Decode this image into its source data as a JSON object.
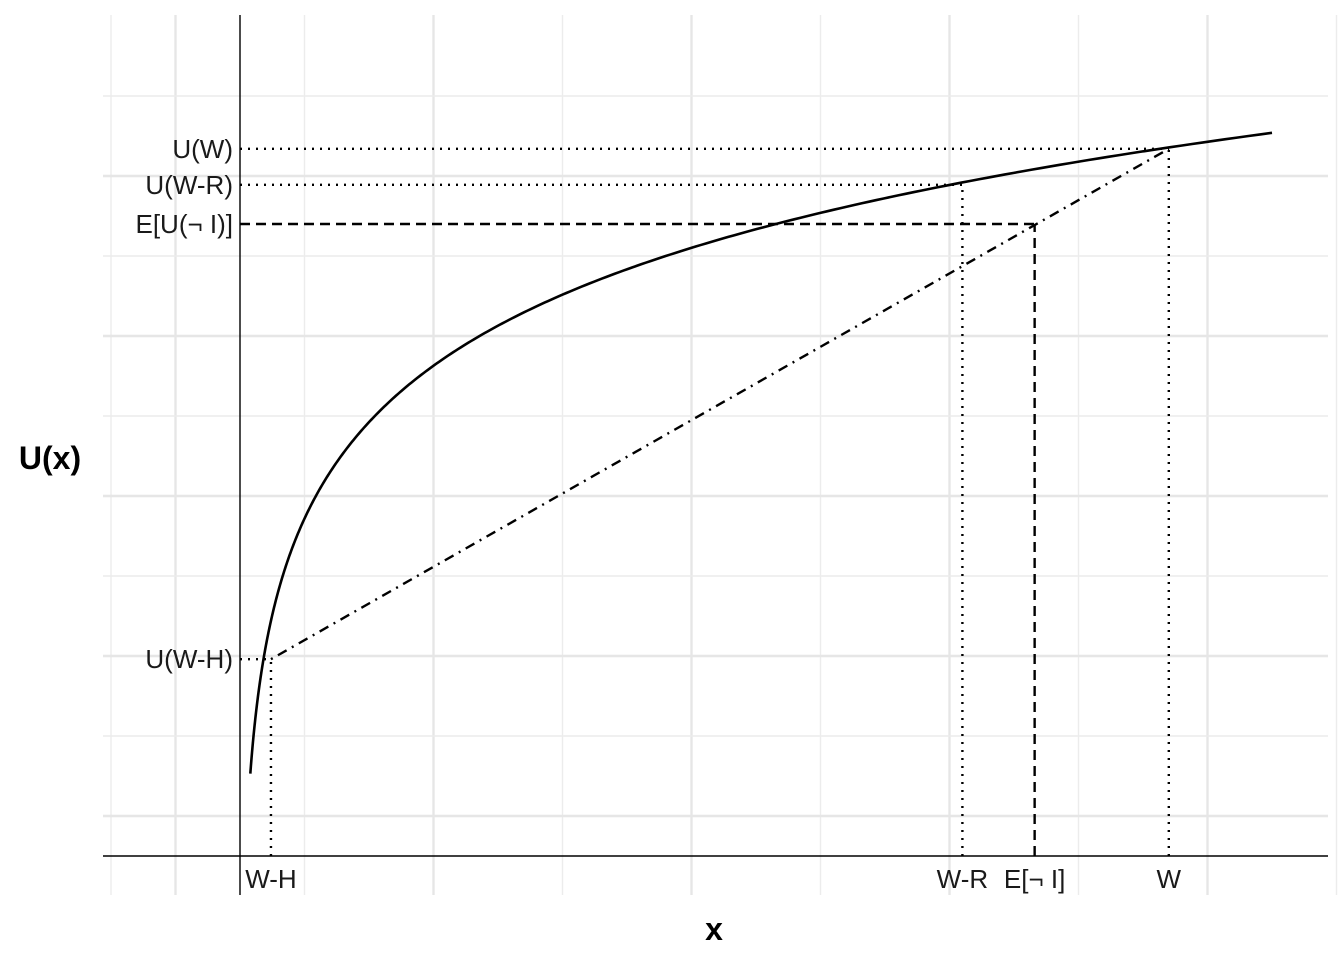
{
  "chart_data": {
    "type": "line",
    "title": "",
    "xlabel": "x",
    "ylabel": "U(x)",
    "grid": true,
    "xlim": [
      -1,
      8.5
    ],
    "ylim": [
      0,
      9
    ],
    "curve": {
      "function": "log",
      "x": [
        0.08,
        0.13,
        0.24,
        0.5,
        1,
        1.5,
        2,
        3,
        4,
        5,
        6,
        6.5,
        7,
        8
      ],
      "y": [
        1.03,
        1.69,
        2.46,
        3.97,
        5.24,
        5.98,
        6.5,
        7.24,
        7.77,
        8.18,
        8.51,
        8.66,
        8.79,
        9.04
      ]
    },
    "lines": [
      {
        "name": "utility",
        "style": "solid",
        "points": [
          [
            0.08,
            1.03
          ],
          [
            8,
            9.04
          ]
        ]
      },
      {
        "name": "chord",
        "style": "dotdash",
        "points": [
          [
            0.24,
            2.46
          ],
          [
            7.2,
            8.84
          ]
        ]
      },
      {
        "name": "W-H vertical",
        "style": "dotted",
        "points": [
          [
            0.24,
            0
          ],
          [
            0.24,
            2.46
          ]
        ]
      },
      {
        "name": "U(W-H) horizontal",
        "style": "dotted",
        "points": [
          [
            0,
            2.46
          ],
          [
            0.24,
            2.46
          ]
        ]
      },
      {
        "name": "W-R vertical",
        "style": "dotted",
        "points": [
          [
            5.6,
            0
          ],
          [
            5.6,
            8.39
          ]
        ]
      },
      {
        "name": "U(W-R) horizontal",
        "style": "dotted",
        "points": [
          [
            0,
            8.39
          ],
          [
            5.6,
            8.39
          ]
        ]
      },
      {
        "name": "W vertical",
        "style": "dotted",
        "points": [
          [
            7.2,
            0
          ],
          [
            7.2,
            8.84
          ]
        ]
      },
      {
        "name": "U(W) horizontal",
        "style": "dotted",
        "points": [
          [
            0,
            8.84
          ],
          [
            7.2,
            8.84
          ]
        ]
      },
      {
        "name": "E vertical",
        "style": "dashed",
        "points": [
          [
            6.16,
            0
          ],
          [
            6.16,
            7.9
          ]
        ]
      },
      {
        "name": "E horizontal",
        "style": "dashed",
        "points": [
          [
            0,
            7.9
          ],
          [
            6.16,
            7.9
          ]
        ]
      }
    ],
    "x_ticks": [
      {
        "value": 0.24,
        "label": "W-H"
      },
      {
        "value": 5.6,
        "label": "W-R"
      },
      {
        "value": 6.16,
        "label": "E[¬ I]"
      },
      {
        "value": 7.2,
        "label": "W"
      }
    ],
    "y_ticks": [
      {
        "value": 8.84,
        "label": "U(W)"
      },
      {
        "value": 8.39,
        "label": "U(W-R)"
      },
      {
        "value": 7.9,
        "label": "E[U(¬ I)]"
      },
      {
        "value": 2.46,
        "label": "U(W-H)"
      }
    ],
    "x_grid_major": [
      -0.5,
      1.5,
      3.5,
      5.5,
      7.5
    ],
    "x_grid_minor": [
      -1,
      0.5,
      2.5,
      4.5,
      6.5,
      8.5
    ],
    "y_grid_major": [
      0.5,
      2.5,
      4.5,
      6.5,
      8.5
    ],
    "y_grid_minor": [
      1.5,
      3.5,
      5.5,
      7.5,
      9.5
    ],
    "colors": {
      "line": "#000000",
      "grid": "#ebebeb",
      "axis": "#000000"
    }
  }
}
